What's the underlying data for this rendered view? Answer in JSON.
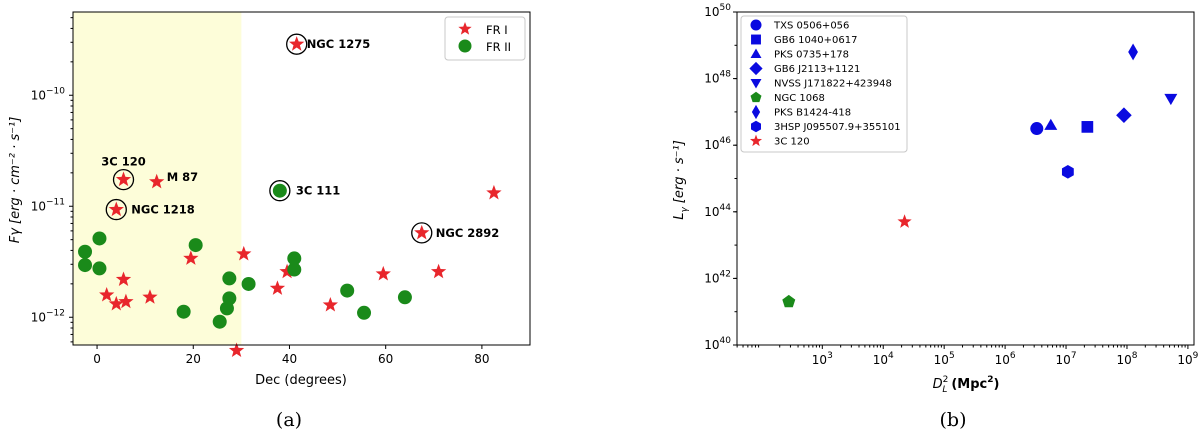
{
  "chart_data": [
    {
      "type": "scatter",
      "xlabel": "Dec (degrees)",
      "ylabel": "Fγ [erg · cm⁻² · s⁻¹]",
      "x_range": [
        -5,
        90
      ],
      "y_range_log10": [
        -12.25,
        -9.25
      ],
      "y_scale": "log",
      "x_ticks": [
        "0",
        "20",
        "40",
        "60",
        "80"
      ],
      "y_ticks": [
        {
          "mant": "10",
          "exp": "−12",
          "log": -12
        },
        {
          "mant": "10",
          "exp": "−11",
          "log": -11
        },
        {
          "mant": "10",
          "exp": "−10",
          "log": -10
        }
      ],
      "shaded_region": {
        "x_from": -5,
        "x_to": 30,
        "color": "#fdfdd9"
      },
      "legend_placement": "top-right",
      "series": [
        {
          "name": "FR I",
          "marker": "star",
          "color": "#e8262c",
          "points": [
            {
              "x": 2,
              "y": -11.8
            },
            {
              "x": 4,
              "y": -11.88
            },
            {
              "x": 5.5,
              "y": -11.66
            },
            {
              "x": 6,
              "y": -11.86
            },
            {
              "x": 11,
              "y": -11.82
            },
            {
              "x": 19.5,
              "y": -11.47
            },
            {
              "x": 29,
              "y": -12.3
            },
            {
              "x": 30.5,
              "y": -11.43
            },
            {
              "x": 37.5,
              "y": -11.74
            },
            {
              "x": 39.5,
              "y": -11.59
            },
            {
              "x": 48.5,
              "y": -11.89
            },
            {
              "x": 59.5,
              "y": -11.61
            },
            {
              "x": 71,
              "y": -11.59
            },
            {
              "x": 82.5,
              "y": -10.88
            },
            {
              "x": 5.5,
              "y": -10.76
            },
            {
              "x": 12.4,
              "y": -10.78
            },
            {
              "x": 4,
              "y": -11.03
            },
            {
              "x": 41.5,
              "y": -9.54
            },
            {
              "x": 67.5,
              "y": -11.24
            }
          ]
        },
        {
          "name": "FR II",
          "marker": "circle",
          "color": "#1a8a1a",
          "points": [
            {
              "x": -2.5,
              "y": -11.41
            },
            {
              "x": -2.5,
              "y": -11.53
            },
            {
              "x": 0.5,
              "y": -11.29
            },
            {
              "x": 0.5,
              "y": -11.56
            },
            {
              "x": 18,
              "y": -11.95
            },
            {
              "x": 20.5,
              "y": -11.35
            },
            {
              "x": 25.5,
              "y": -12.04
            },
            {
              "x": 27,
              "y": -11.92
            },
            {
              "x": 27.5,
              "y": -11.83
            },
            {
              "x": 27.5,
              "y": -11.65
            },
            {
              "x": 31.5,
              "y": -11.7
            },
            {
              "x": 41,
              "y": -11.57
            },
            {
              "x": 41,
              "y": -11.47
            },
            {
              "x": 52,
              "y": -11.76
            },
            {
              "x": 55.5,
              "y": -11.96
            },
            {
              "x": 64,
              "y": -11.82
            },
            {
              "x": 38,
              "y": -10.86
            }
          ]
        }
      ],
      "annotations": [
        {
          "text": "NGC 1275",
          "x": 41.5,
          "y": -9.54,
          "circled": true
        },
        {
          "text": "3C 120",
          "x": 5.5,
          "y": -10.76,
          "circled": true
        },
        {
          "text": "M 87",
          "x": 12.4,
          "y": -10.78,
          "circled": false
        },
        {
          "text": "NGC 1218",
          "x": 4,
          "y": -11.03,
          "circled": true
        },
        {
          "text": "3C 111",
          "x": 38,
          "y": -10.86,
          "circled": true
        },
        {
          "text": "NGC 2892",
          "x": 67.5,
          "y": -11.24,
          "circled": true
        }
      ]
    },
    {
      "type": "scatter",
      "xlabel_main": "D",
      "xlabel_sub": "L",
      "xlabel_sup": "2",
      "xlabel_unit": "(Mpc",
      "xlabel_unit_sup": "2",
      "xlabel_unit_end": ")",
      "ylabel_main": "L",
      "ylabel_sub": "γ",
      "ylabel_unit": "[erg · s⁻¹]",
      "x_scale": "log",
      "y_scale": "log",
      "x_range_log10": [
        1.6,
        9.1
      ],
      "y_range_log10": [
        40,
        50
      ],
      "x_ticks": [
        {
          "mant": "10",
          "exp": "3",
          "log": 3
        },
        {
          "mant": "10",
          "exp": "4",
          "log": 4
        },
        {
          "mant": "10",
          "exp": "5",
          "log": 5
        },
        {
          "mant": "10",
          "exp": "6",
          "log": 6
        },
        {
          "mant": "10",
          "exp": "7",
          "log": 7
        },
        {
          "mant": "10",
          "exp": "8",
          "log": 8
        },
        {
          "mant": "10",
          "exp": "9",
          "log": 9
        }
      ],
      "y_ticks": [
        {
          "mant": "10",
          "exp": "40",
          "log": 40
        },
        {
          "mant": "10",
          "exp": "42",
          "log": 42
        },
        {
          "mant": "10",
          "exp": "44",
          "log": 44
        },
        {
          "mant": "10",
          "exp": "46",
          "log": 46
        },
        {
          "mant": "10",
          "exp": "48",
          "log": 48
        },
        {
          "mant": "10",
          "exp": "50",
          "log": 50
        }
      ],
      "legend_placement": "top-left",
      "series": [
        {
          "name": "TXS 0506+056",
          "marker": "circle",
          "color": "#0a0ae0",
          "x": 6.52,
          "y": 46.5
        },
        {
          "name": "GB6 1040+0617",
          "marker": "square",
          "color": "#0a0ae0",
          "x": 7.35,
          "y": 46.55
        },
        {
          "name": "PKS 0735+178",
          "marker": "triangle-up",
          "color": "#0a0ae0",
          "x": 6.75,
          "y": 46.6
        },
        {
          "name": "GB6 J2113+1121",
          "marker": "diamond",
          "color": "#0a0ae0",
          "x": 7.95,
          "y": 46.9
        },
        {
          "name": "NVSS J171822+423948",
          "marker": "triangle-down",
          "color": "#0a0ae0",
          "x": 8.72,
          "y": 47.4
        },
        {
          "name": "NGC 1068",
          "marker": "pentagon",
          "color": "#1a8a1a",
          "x": 2.45,
          "y": 41.3
        },
        {
          "name": "PKS B1424-418",
          "marker": "thin-diamond",
          "color": "#0a0ae0",
          "x": 8.1,
          "y": 48.8
        },
        {
          "name": "3HSP J095507.9+355101",
          "marker": "hexagon",
          "color": "#0a0ae0",
          "x": 7.03,
          "y": 45.2
        },
        {
          "name": "3C 120",
          "marker": "star",
          "color": "#e8262c",
          "x": 4.35,
          "y": 43.7
        }
      ]
    }
  ],
  "captions": {
    "a": "(a)",
    "b": "(b)"
  }
}
